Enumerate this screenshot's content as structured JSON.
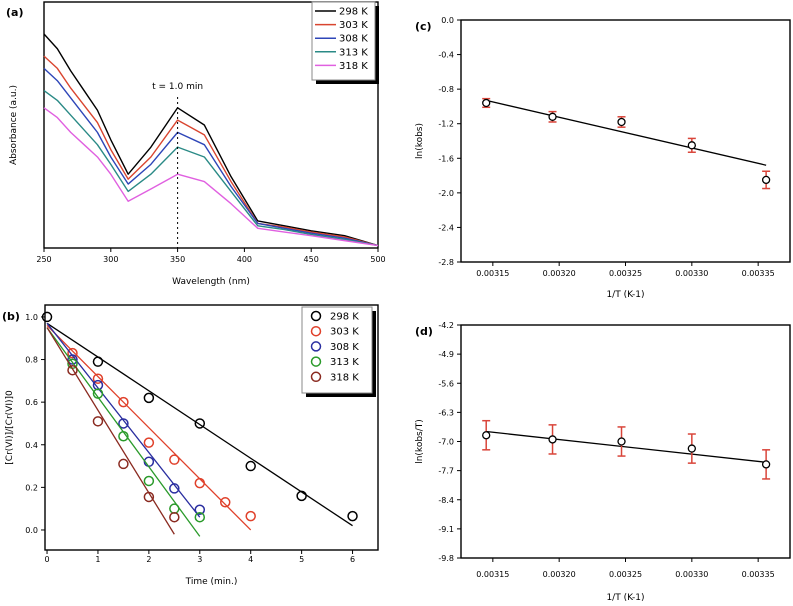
{
  "chart_data": [
    {
      "panel": "(a)",
      "type": "line",
      "xlabel": "Wavelength (nm)",
      "ylabel": "Absorbance (a.u.)",
      "xlim": [
        250,
        500
      ],
      "ylim": [
        0,
        1
      ],
      "xticks": [
        250,
        300,
        350,
        400,
        450,
        500
      ],
      "annotation": "t = 1.0 min",
      "annotation_x": 350,
      "legend_position": "top-right",
      "x": [
        250,
        260,
        270,
        280,
        290,
        300,
        313,
        330,
        350,
        370,
        390,
        410,
        430,
        450,
        475,
        500
      ],
      "series": [
        {
          "name": "298 K",
          "color": "#000000",
          "values": [
            0.87,
            0.81,
            0.72,
            0.64,
            0.56,
            0.44,
            0.3,
            0.41,
            0.57,
            0.5,
            0.29,
            0.11,
            0.09,
            0.07,
            0.05,
            0.01
          ]
        },
        {
          "name": "303 K",
          "color": "#d9452f",
          "values": [
            0.78,
            0.73,
            0.65,
            0.58,
            0.51,
            0.4,
            0.28,
            0.37,
            0.52,
            0.46,
            0.27,
            0.1,
            0.085,
            0.065,
            0.045,
            0.01
          ]
        },
        {
          "name": "308 K",
          "color": "#2e46b8",
          "values": [
            0.73,
            0.68,
            0.61,
            0.54,
            0.47,
            0.37,
            0.26,
            0.34,
            0.47,
            0.42,
            0.25,
            0.1,
            0.08,
            0.06,
            0.04,
            0.01
          ]
        },
        {
          "name": "313 K",
          "color": "#2a8a86",
          "values": [
            0.64,
            0.6,
            0.54,
            0.48,
            0.42,
            0.34,
            0.23,
            0.3,
            0.41,
            0.37,
            0.23,
            0.09,
            0.075,
            0.055,
            0.035,
            0.01
          ]
        },
        {
          "name": "318 K",
          "color": "#e060e0",
          "values": [
            0.57,
            0.53,
            0.47,
            0.42,
            0.37,
            0.3,
            0.19,
            0.24,
            0.3,
            0.27,
            0.18,
            0.08,
            0.065,
            0.05,
            0.03,
            0.01
          ]
        }
      ]
    },
    {
      "panel": "(b)",
      "type": "scatter",
      "xlabel": "Time (min.)",
      "ylabel": "[Cr(VI)]/[Cr(VI)]0",
      "xlim": [
        -0.04,
        6.5
      ],
      "ylim": [
        -0.094,
        1.056
      ],
      "xticks": [
        0,
        1,
        2,
        3,
        4,
        5,
        6
      ],
      "yticks": [
        "0.0",
        "0.2",
        "0.4",
        "0.6",
        "0.8",
        "1.0"
      ],
      "legend_position": "top-right",
      "series": [
        {
          "name": "298 K",
          "color": "#000000",
          "x": [
            0,
            1,
            2,
            3,
            4,
            5,
            6
          ],
          "y": [
            1.0,
            0.79,
            0.62,
            0.5,
            0.3,
            0.16,
            0.065
          ],
          "fit": [
            [
              0,
              0.97
            ],
            [
              6,
              0.02
            ]
          ]
        },
        {
          "name": "303 K",
          "color": "#e0402a",
          "x": [
            0.5,
            1,
            1.5,
            2,
            2.5,
            3,
            3.5,
            4
          ],
          "y": [
            0.83,
            0.71,
            0.6,
            0.41,
            0.33,
            0.22,
            0.13,
            0.065
          ],
          "fit": [
            [
              0,
              0.96
            ],
            [
              4,
              0.0
            ]
          ]
        },
        {
          "name": "308 K",
          "color": "#2a2ea0",
          "x": [
            0.5,
            1,
            1.5,
            2,
            2.5,
            3
          ],
          "y": [
            0.8,
            0.68,
            0.5,
            0.32,
            0.195,
            0.095
          ],
          "fit": [
            [
              0,
              0.97
            ],
            [
              3,
              0.06
            ]
          ]
        },
        {
          "name": "313 K",
          "color": "#2a9a2a",
          "x": [
            0.5,
            1,
            1.5,
            2,
            2.5,
            3
          ],
          "y": [
            0.78,
            0.64,
            0.44,
            0.23,
            0.1,
            0.06
          ],
          "fit": [
            [
              0,
              0.95
            ],
            [
              3,
              -0.03
            ]
          ]
        },
        {
          "name": "318 K",
          "color": "#8a2a20",
          "x": [
            0.5,
            1,
            1.5,
            2,
            2.5
          ],
          "y": [
            0.75,
            0.51,
            0.31,
            0.155,
            0.06
          ],
          "fit": [
            [
              0,
              0.95
            ],
            [
              2.5,
              -0.02
            ]
          ]
        }
      ]
    },
    {
      "panel": "(c)",
      "type": "scatter",
      "xlabel": "1/T (K-1)",
      "ylabel": "ln(kobs)",
      "xlim": [
        0.003126,
        0.003374
      ],
      "ylim": [
        -2.8,
        0.0
      ],
      "xticks": [
        "0.00315",
        "0.00320",
        "0.00325",
        "0.00330",
        "0.00335"
      ],
      "yticks": [
        "0.0",
        "-0.4",
        "-0.8",
        "-1.2",
        "-1.6",
        "-2.0",
        "-2.4",
        "-2.8"
      ],
      "x": [
        0.003145,
        0.003195,
        0.003247,
        0.0033,
        0.003356
      ],
      "y": [
        -0.96,
        -1.12,
        -1.18,
        -1.45,
        -1.85
      ],
      "error": [
        0.05,
        0.06,
        0.06,
        0.08,
        0.1
      ],
      "fit": [
        [
          0.003145,
          -0.93
        ],
        [
          0.003356,
          -1.68
        ]
      ],
      "error_color": "#d9453a"
    },
    {
      "panel": "(d)",
      "type": "scatter",
      "xlabel": "1/T (K-1)",
      "ylabel": "ln(kobs/T)",
      "xlim": [
        0.003126,
        0.003374
      ],
      "ylim": [
        -9.8,
        -4.2
      ],
      "xticks": [
        "0.00315",
        "0.00320",
        "0.00325",
        "0.00330",
        "0.00335"
      ],
      "yticks": [
        "-4.2",
        "-4.9",
        "-5.6",
        "-6.3",
        "-7.0",
        "-7.7",
        "-8.4",
        "-9.1",
        "-9.8"
      ],
      "x": [
        0.003145,
        0.003195,
        0.003247,
        0.0033,
        0.003356
      ],
      "y": [
        -6.85,
        -6.95,
        -7.0,
        -7.17,
        -7.55
      ],
      "error": [
        0.35,
        0.35,
        0.35,
        0.35,
        0.35
      ],
      "fit": [
        [
          0.003145,
          -6.76
        ],
        [
          0.003356,
          -7.5
        ]
      ],
      "error_color": "#d9453a"
    }
  ]
}
